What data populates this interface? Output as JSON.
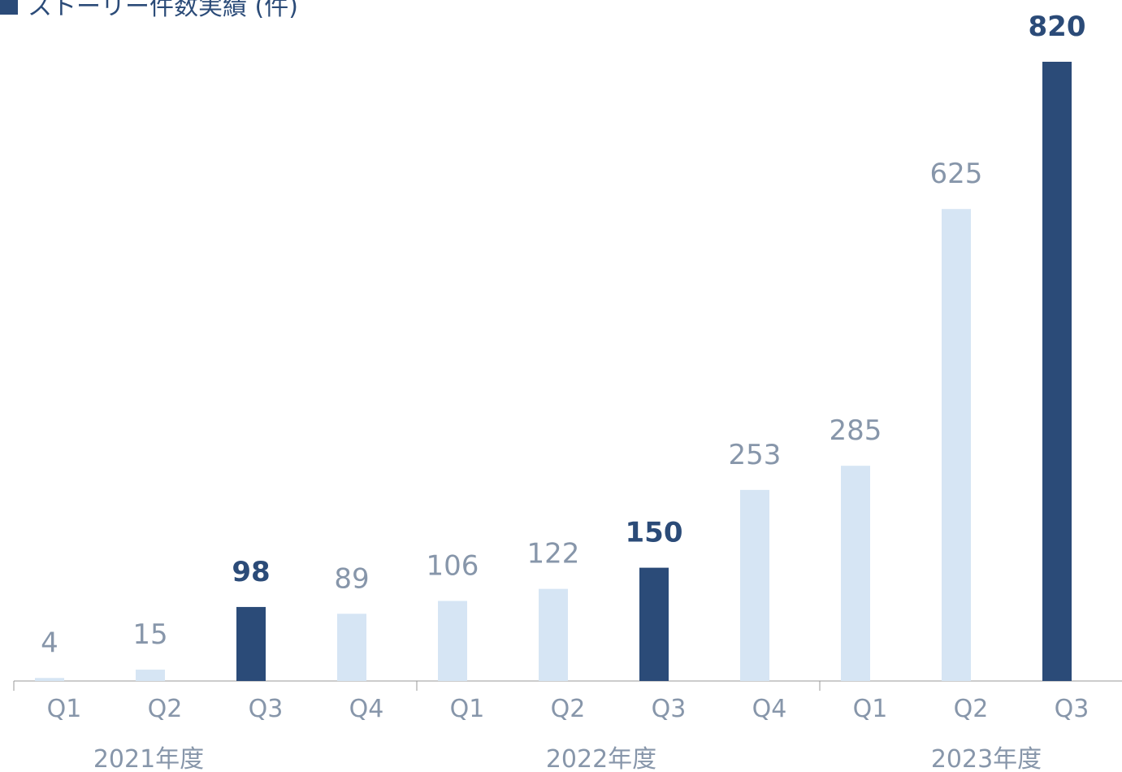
{
  "chart_data": {
    "type": "bar",
    "title": "ストーリー件数実績 (件)",
    "categories": [
      "Q1",
      "Q2",
      "Q3",
      "Q4",
      "Q1",
      "Q2",
      "Q3",
      "Q4",
      "Q1",
      "Q2",
      "Q3"
    ],
    "values": [
      4,
      15,
      98,
      89,
      106,
      122,
      150,
      253,
      285,
      625,
      820
    ],
    "colors": [
      "#d6e5f4",
      "#d6e5f4",
      "#2b4b78",
      "#d6e5f4",
      "#d6e5f4",
      "#d6e5f4",
      "#2b4b78",
      "#d6e5f4",
      "#d6e5f4",
      "#d6e5f4",
      "#2b4b78"
    ],
    "groups": [
      {
        "label": "2021年度",
        "span": 4
      },
      {
        "label": "2022年度",
        "span": 4
      },
      {
        "label": "2023年度",
        "span": 3
      }
    ],
    "legend_color": "#2b4b78"
  }
}
